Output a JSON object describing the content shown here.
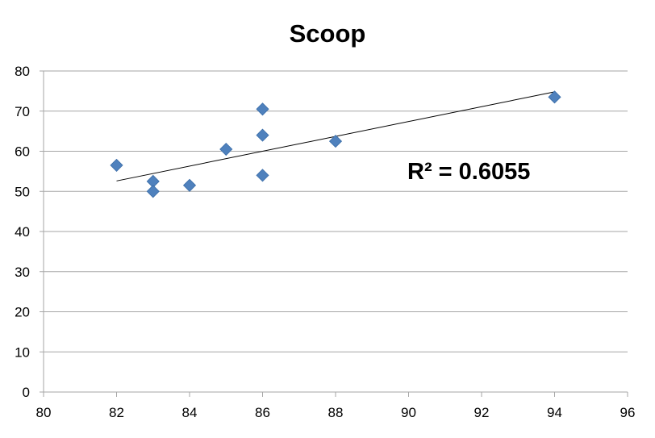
{
  "chart_data": {
    "type": "scatter",
    "title": "Scoop",
    "xlabel": "",
    "ylabel": "",
    "xlim": [
      80,
      96
    ],
    "ylim": [
      0,
      80
    ],
    "x_ticks": [
      80,
      82,
      84,
      86,
      88,
      90,
      92,
      94,
      96
    ],
    "y_ticks": [
      0,
      10,
      20,
      30,
      40,
      50,
      60,
      70,
      80
    ],
    "grid": "horizontal",
    "legend": "none",
    "marker": "diamond",
    "colors": {
      "marker": "#4F81BD",
      "trendline": "#000000",
      "grid": "#A6A6A6",
      "axis": "#A6A6A6"
    },
    "points": [
      {
        "x": 82,
        "y": 56.5
      },
      {
        "x": 83,
        "y": 52.5
      },
      {
        "x": 83,
        "y": 50
      },
      {
        "x": 84,
        "y": 51.5
      },
      {
        "x": 85,
        "y": 60.5
      },
      {
        "x": 86,
        "y": 70.5
      },
      {
        "x": 86,
        "y": 64
      },
      {
        "x": 86,
        "y": 54
      },
      {
        "x": 88,
        "y": 62.5
      },
      {
        "x": 94,
        "y": 73.5
      }
    ],
    "trendline": {
      "type": "linear",
      "x_range": [
        82,
        94
      ],
      "y_start": 52.6,
      "y_end": 74.8
    },
    "annotation": {
      "r2_label": "R² = 0.6055"
    }
  }
}
